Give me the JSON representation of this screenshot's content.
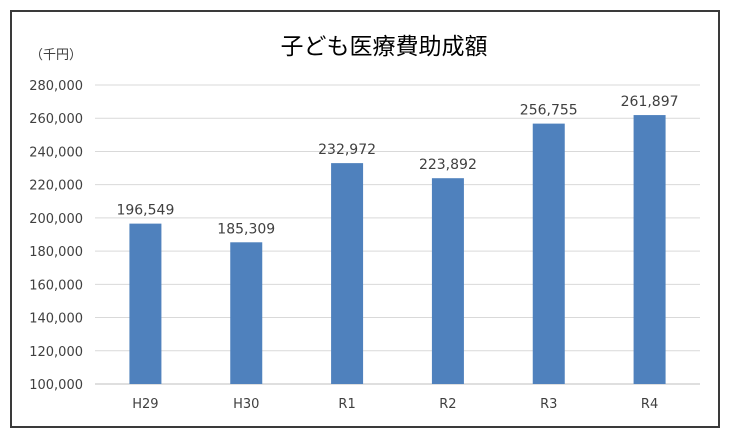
{
  "chart_data": {
    "type": "bar",
    "title": "子ども医療費助成額",
    "unit_label": "（千円）",
    "categories": [
      "H29",
      "H30",
      "R1",
      "R2",
      "R3",
      "R4"
    ],
    "values": [
      196549,
      185309,
      232972,
      223892,
      256755,
      261897
    ],
    "value_labels": [
      "196,549",
      "185,309",
      "232,972",
      "223,892",
      "256,755",
      "261,897"
    ],
    "ylim": [
      100000,
      280000
    ],
    "y_ticks": [
      100000,
      120000,
      140000,
      160000,
      180000,
      200000,
      220000,
      240000,
      260000,
      280000
    ],
    "y_tick_labels": [
      "100,000",
      "120,000",
      "140,000",
      "160,000",
      "180,000",
      "200,000",
      "220,000",
      "240,000",
      "260,000",
      "280,000"
    ],
    "grid": true,
    "bar_color": "#4F81BD",
    "grid_color": "#D9D9D9"
  }
}
